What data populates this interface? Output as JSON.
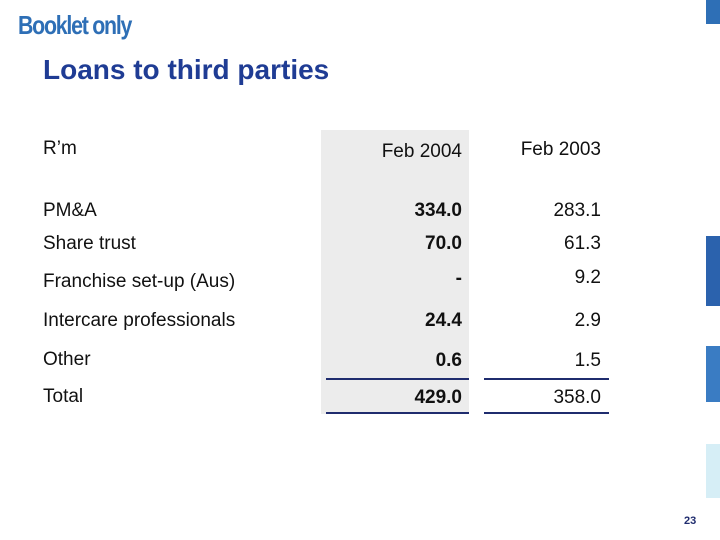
{
  "header": {
    "booklet_label": "Booklet only"
  },
  "slide": {
    "title": "Loans to third parties",
    "page_number": "23"
  },
  "table": {
    "unit_label": "R’m",
    "columns": [
      "Feb 2004",
      "Feb 2003"
    ],
    "rows": [
      {
        "label": "PM&A",
        "feb2004": "334.0",
        "feb2003": "283.1"
      },
      {
        "label": "Share trust",
        "feb2004": "70.0",
        "feb2003": "61.3"
      },
      {
        "label": "Franchise set-up (Aus)",
        "feb2004": "-",
        "feb2003": "9.2"
      },
      {
        "label": "Intercare professionals",
        "feb2004": "24.4",
        "feb2003": "2.9"
      },
      {
        "label": "Other",
        "feb2004": "0.6",
        "feb2003": "1.5"
      }
    ],
    "total": {
      "label": "Total",
      "feb2004": "429.0",
      "feb2003": "358.0"
    }
  },
  "colors": {
    "accent_blue": "#2e6fb6",
    "title_blue": "#1f3c94",
    "highlight_grey": "#ececec"
  }
}
